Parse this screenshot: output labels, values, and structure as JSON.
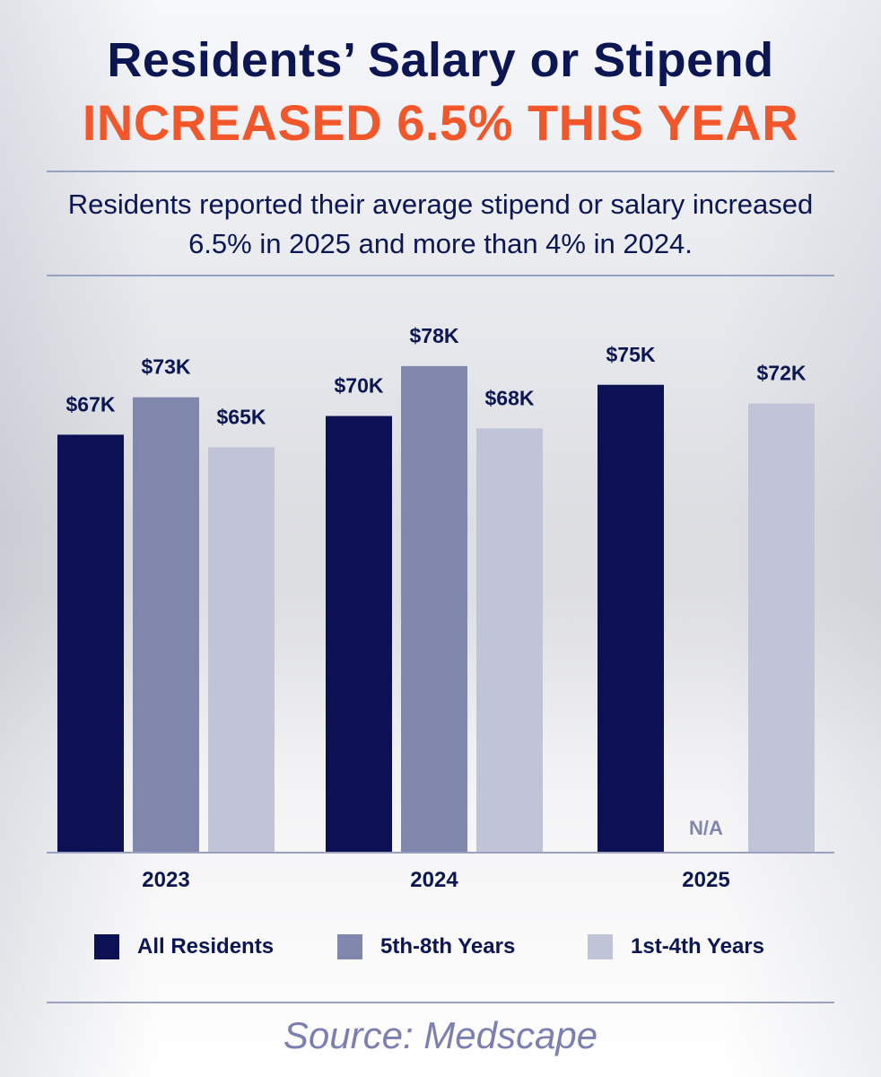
{
  "header": {
    "title_line1": "Residents’ Salary or Stipend",
    "title_line2": "INCREASED 6.5% THIS YEAR",
    "subtitle": "Residents reported their average stipend or salary increased 6.5% in 2025 and more than 4% in 2024."
  },
  "footer": {
    "source": "Source: Medscape"
  },
  "chart_data": {
    "type": "bar",
    "title": "",
    "xlabel": "",
    "ylabel": "",
    "categories": [
      "2023",
      "2024",
      "2025"
    ],
    "series": [
      {
        "name": "All Residents",
        "color": "#0b1152",
        "values": [
          67,
          70,
          75
        ],
        "labels": [
          "$67K",
          "$70K",
          "$75K"
        ]
      },
      {
        "name": "5th-8th Years",
        "color": "#8187ac",
        "values": [
          73,
          78,
          null
        ],
        "labels": [
          "$73K",
          "$78K",
          "N/A"
        ]
      },
      {
        "name": "1st-4th Years",
        "color": "#c1c3d6",
        "values": [
          65,
          68,
          72
        ],
        "labels": [
          "$65K",
          "$68K",
          "$72K"
        ]
      }
    ],
    "grid": false,
    "legend_position": "bottom"
  }
}
